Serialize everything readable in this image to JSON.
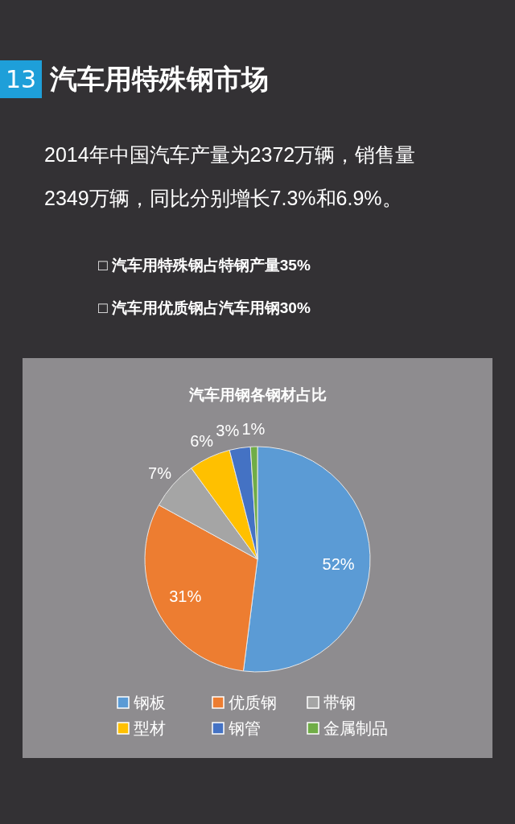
{
  "chart_data": {
    "type": "pie",
    "title": "汽车用钢各钢材占比",
    "categories": [
      "钢板",
      "优质钢",
      "带钢",
      "型材",
      "钢管",
      "金属制品"
    ],
    "values": [
      52,
      31,
      7,
      6,
      3,
      1
    ],
    "colors": [
      "#5b9bd5",
      "#ed7d31",
      "#a5a5a5",
      "#ffc000",
      "#4472c4",
      "#70ad47"
    ],
    "value_labels": [
      "52%",
      "31%",
      "7%",
      "6%",
      "3%",
      "1%"
    ],
    "legend": "bottom",
    "annotations": [
      "13",
      "汽车用特殊钢市场",
      "2014年中国汽车产量为2372万辆，销售量2349万辆，同比分别增长7.3%和6.9%。",
      "□ 汽车用特殊钢占特钢产量35%",
      "□ 汽车用优质钢占汽车用钢30%"
    ]
  }
}
